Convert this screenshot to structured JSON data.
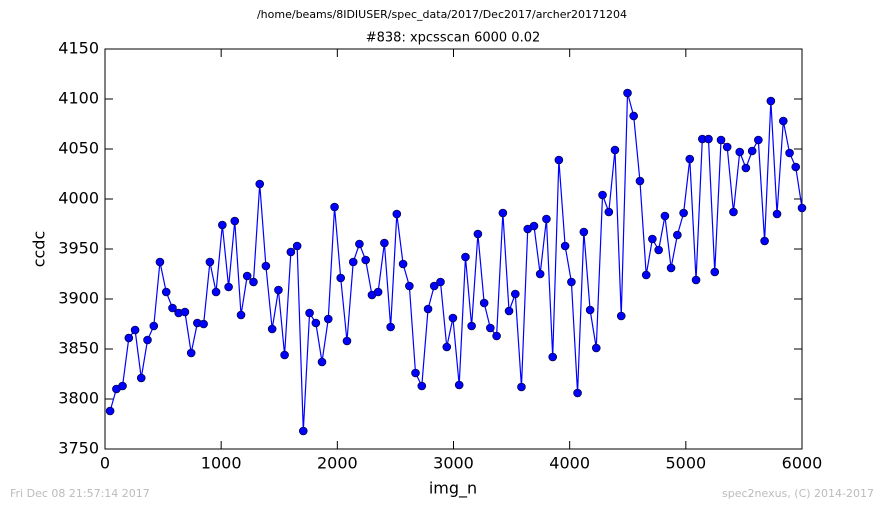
{
  "chart_data": {
    "type": "line",
    "suptitle": "/home/beams/8IDIUSER/spec_data/2017/Dec2017/archer20171204",
    "title": "#838: xpcsscan 6000 0.02",
    "xlabel": "img_n",
    "ylabel": "ccdc",
    "x": [
      44,
      98,
      151,
      205,
      259,
      312,
      366,
      420,
      473,
      527,
      581,
      634,
      688,
      742,
      795,
      849,
      903,
      956,
      1010,
      1064,
      1117,
      1171,
      1224,
      1278,
      1332,
      1385,
      1439,
      1493,
      1546,
      1600,
      1654,
      1707,
      1761,
      1815,
      1868,
      1922,
      1976,
      2029,
      2083,
      2137,
      2190,
      2244,
      2298,
      2351,
      2405,
      2459,
      2512,
      2566,
      2620,
      2673,
      2727,
      2781,
      2834,
      2888,
      2942,
      2995,
      3049,
      3103,
      3156,
      3210,
      3264,
      3317,
      3371,
      3425,
      3478,
      3532,
      3585,
      3639,
      3693,
      3746,
      3800,
      3854,
      3907,
      3961,
      4015,
      4068,
      4122,
      4176,
      4229,
      4283,
      4337,
      4390,
      4444,
      4498,
      4551,
      4605,
      4659,
      4712,
      4766,
      4820,
      4873,
      4927,
      4981,
      5034,
      5088,
      5142,
      5195,
      5249,
      5303,
      5356,
      5410,
      5464,
      5517,
      5571,
      5624,
      5678,
      5732,
      5785,
      5839,
      5893,
      5946,
      6000
    ],
    "series": [
      {
        "color": "#0000ff",
        "values": [
          3788,
          3810,
          3813,
          3861,
          3869,
          3821,
          3859,
          3873,
          3937,
          3907,
          3891,
          3886,
          3887,
          3846,
          3876,
          3875,
          3937,
          3907,
          3974,
          3912,
          3978,
          3884,
          3923,
          3917,
          4015,
          3933,
          3870,
          3909,
          3844,
          3947,
          3953,
          3768,
          3886,
          3876,
          3837,
          3880,
          3992,
          3921,
          3858,
          3937,
          3955,
          3939,
          3904,
          3907,
          3956,
          3872,
          3985,
          3935,
          3913,
          3826,
          3813,
          3890,
          3913,
          3917,
          3852,
          3881,
          3814,
          3942,
          3873,
          3965,
          3896,
          3871,
          3863,
          3986,
          3888,
          3905,
          3812,
          3970,
          3973,
          3925,
          3980,
          3842,
          4039,
          3953,
          3917,
          3806,
          3967,
          3889,
          3851,
          4004,
          3987,
          4049,
          3883,
          4106,
          4083,
          4018,
          3924,
          3960,
          3949,
          3983,
          3931,
          3964,
          3986,
          4040,
          3919,
          4060,
          4060,
          3927,
          4059,
          4052,
          3987,
          4047,
          4031,
          4048,
          4059,
          3958,
          4098,
          3985,
          4078,
          4046,
          4032,
          3991
        ]
      }
    ],
    "xlim": [
      0,
      6000
    ],
    "xticks": [
      0,
      1000,
      2000,
      3000,
      4000,
      5000,
      6000
    ],
    "ylim": [
      3750,
      4150
    ],
    "yticks": [
      3750,
      3800,
      3850,
      3900,
      3950,
      4000,
      4050,
      4100,
      4150
    ],
    "grid": false
  },
  "footer": {
    "timestamp": "Fri Dec 08 21:57:14 2017",
    "credit": "spec2nexus, (C) 2014-2017"
  }
}
